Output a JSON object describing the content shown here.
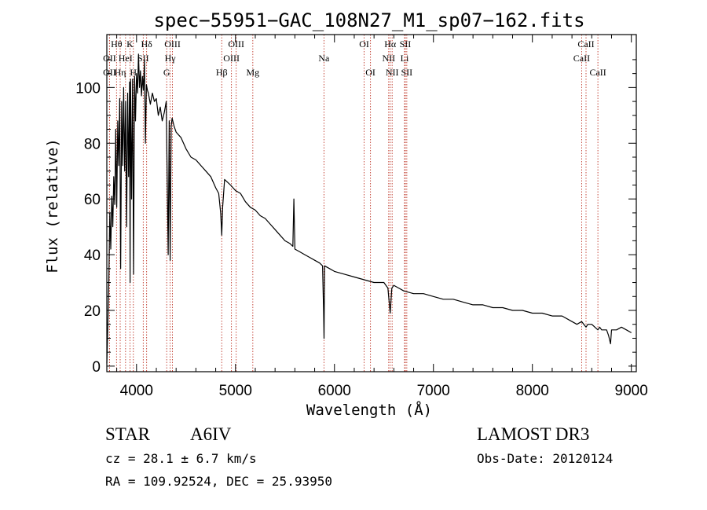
{
  "chart_data": {
    "type": "line",
    "title": "spec−55951−GAC_108N27_M1_sp07−162.fits",
    "xlabel": "Wavelength (Å)",
    "ylabel": "Flux (relative)",
    "xlim": [
      3700,
      9050
    ],
    "ylim": [
      -2,
      119
    ],
    "xticks": [
      4000,
      5000,
      6000,
      7000,
      8000,
      9000
    ],
    "yticks": [
      0,
      20,
      40,
      60,
      80,
      100
    ],
    "series": [
      {
        "name": "flux",
        "x": [
          3700,
          3710,
          3720,
          3730,
          3740,
          3750,
          3760,
          3770,
          3780,
          3790,
          3800,
          3810,
          3820,
          3830,
          3840,
          3850,
          3860,
          3870,
          3880,
          3890,
          3900,
          3910,
          3920,
          3930,
          3935,
          3940,
          3950,
          3960,
          3970,
          3980,
          3990,
          4000,
          4010,
          4020,
          4030,
          4040,
          4050,
          4060,
          4070,
          4080,
          4090,
          4100,
          4110,
          4120,
          4140,
          4160,
          4180,
          4200,
          4220,
          4240,
          4260,
          4280,
          4300,
          4320,
          4330,
          4340,
          4350,
          4360,
          4380,
          4400,
          4450,
          4500,
          4550,
          4600,
          4650,
          4700,
          4750,
          4800,
          4830,
          4850,
          4861,
          4870,
          4890,
          4920,
          4950,
          5000,
          5050,
          5100,
          5150,
          5200,
          5250,
          5300,
          5350,
          5400,
          5450,
          5500,
          5550,
          5580,
          5590,
          5600,
          5650,
          5700,
          5750,
          5800,
          5850,
          5880,
          5890,
          5895,
          5900,
          5950,
          6000,
          6100,
          6200,
          6300,
          6400,
          6500,
          6540,
          6563,
          6580,
          6600,
          6650,
          6700,
          6800,
          6900,
          7000,
          7100,
          7200,
          7300,
          7400,
          7500,
          7600,
          7700,
          7800,
          7900,
          8000,
          8100,
          8200,
          8300,
          8400,
          8450,
          8498,
          8520,
          8542,
          8560,
          8600,
          8662,
          8680,
          8700,
          8750,
          8770,
          8790,
          8800,
          8850,
          8900,
          8950,
          9000
        ],
        "y": [
          1,
          15,
          30,
          55,
          42,
          61,
          50,
          68,
          58,
          85,
          57,
          88,
          72,
          96,
          35,
          95,
          72,
          100,
          70,
          95,
          50,
          98,
          68,
          102,
          30,
          103,
          60,
          103,
          33,
          104,
          88,
          105,
          98,
          112,
          100,
          106,
          97,
          104,
          99,
          110,
          80,
          101,
          99,
          98,
          94,
          98,
          95,
          96,
          90,
          93,
          88,
          91,
          95,
          40,
          88,
          38,
          86,
          89,
          86,
          84,
          82,
          78,
          75,
          74,
          72,
          70,
          68,
          64,
          62,
          55,
          47,
          57,
          67,
          66,
          65,
          63,
          62,
          59,
          57,
          56,
          54,
          53,
          51,
          49,
          47,
          45,
          44,
          43,
          60,
          42,
          41,
          40,
          39,
          38,
          37,
          36,
          20,
          10,
          36,
          35,
          34,
          33,
          32,
          31,
          30,
          30,
          28,
          19,
          28,
          29,
          28,
          27,
          26,
          26,
          25,
          24,
          24,
          23,
          22,
          22,
          21,
          21,
          20,
          20,
          19,
          19,
          18,
          18,
          16,
          15,
          16,
          15,
          14,
          15,
          15,
          13,
          14,
          13,
          13,
          11,
          8,
          13,
          13,
          14,
          13,
          12
        ]
      }
    ],
    "spectral_lines": [
      {
        "label": "Hθ",
        "wl": 3798,
        "row": 0
      },
      {
        "label": "OII",
        "wl": 3727,
        "row": 1
      },
      {
        "label": "OII",
        "wl": 3727,
        "row": 2
      },
      {
        "label": "Hη",
        "wl": 3835,
        "row": 2
      },
      {
        "label": "HeI",
        "wl": 3889,
        "row": 1
      },
      {
        "label": "K",
        "wl": 3934,
        "row": 0
      },
      {
        "label": "H",
        "wl": 3968,
        "row": 2
      },
      {
        "label": "SII",
        "wl": 4068,
        "row": 1
      },
      {
        "label": "Hδ",
        "wl": 4102,
        "row": 0
      },
      {
        "label": "OIII",
        "wl": 4363,
        "row": 0
      },
      {
        "label": "Hγ",
        "wl": 4340,
        "row": 1
      },
      {
        "label": "G",
        "wl": 4305,
        "row": 2
      },
      {
        "label": "Hβ",
        "wl": 4861,
        "row": 2
      },
      {
        "label": "OIII",
        "wl": 5007,
        "row": 0
      },
      {
        "label": "OIII",
        "wl": 4959,
        "row": 1
      },
      {
        "label": "Mg",
        "wl": 5175,
        "row": 2
      },
      {
        "label": "Na",
        "wl": 5894,
        "row": 1
      },
      {
        "label": "OI",
        "wl": 6300,
        "row": 0
      },
      {
        "label": "OI",
        "wl": 6364,
        "row": 2
      },
      {
        "label": "Hα",
        "wl": 6563,
        "row": 0
      },
      {
        "label": "NII",
        "wl": 6548,
        "row": 1
      },
      {
        "label": "NII",
        "wl": 6583,
        "row": 2
      },
      {
        "label": "SII",
        "wl": 6716,
        "row": 0
      },
      {
        "label": "Li",
        "wl": 6708,
        "row": 1
      },
      {
        "label": "SII",
        "wl": 6731,
        "row": 2
      },
      {
        "label": "CaII",
        "wl": 8542,
        "row": 0
      },
      {
        "label": "CaII",
        "wl": 8498,
        "row": 1
      },
      {
        "label": "CaII",
        "wl": 8662,
        "row": 2
      }
    ]
  },
  "info": {
    "object_class": "STAR",
    "subclass": "A6IV",
    "survey": "LAMOST  DR3",
    "cz": "cz = 28.1 ± 6.7 km/s",
    "obs_date": "Obs-Date: 20120124",
    "coords": "RA = 109.92524, DEC =  25.93950"
  },
  "colors": {
    "line_marker": "#c0392b",
    "spectrum": "#000000"
  }
}
